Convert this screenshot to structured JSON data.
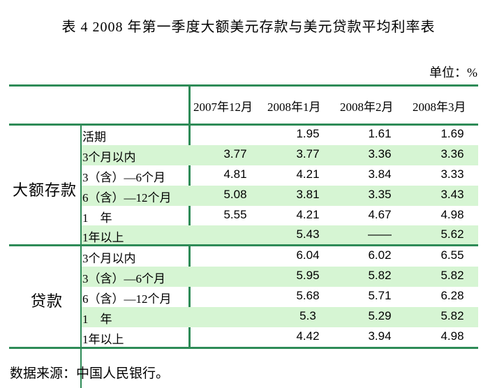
{
  "title": "表 4  2008 年第一季度大额美元存款与美元贷款平均利率表",
  "unit": "单位：%",
  "table": {
    "columns": [
      "2007年12月",
      "2008年1月",
      "2008年2月",
      "2008年3月"
    ],
    "groups": [
      {
        "name": "大额存款",
        "rows": [
          {
            "label": "活期",
            "values": [
              "",
              "1.95",
              "1.61",
              "1.69"
            ]
          },
          {
            "label": "3个月以内",
            "values": [
              "3.77",
              "3.77",
              "3.36",
              "3.36"
            ]
          },
          {
            "label": "3（含）—6个月",
            "values": [
              "4.81",
              "4.21",
              "3.84",
              "3.33"
            ]
          },
          {
            "label": "6（含）—12个月",
            "values": [
              "5.08",
              "3.81",
              "3.35",
              "3.43"
            ]
          },
          {
            "label": "1　年",
            "values": [
              "5.55",
              "4.21",
              "4.67",
              "4.98"
            ]
          },
          {
            "label": "1年以上",
            "values": [
              "",
              "5.43",
              "——",
              "5.62"
            ]
          }
        ]
      },
      {
        "name": "贷款",
        "rows": [
          {
            "label": "3个月以内",
            "values": [
              "",
              "6.04",
              "6.02",
              "6.55"
            ]
          },
          {
            "label": "3（含）—6个月",
            "values": [
              "",
              "5.95",
              "5.82",
              "5.82"
            ]
          },
          {
            "label": "6（含）—12个月",
            "values": [
              "",
              "5.68",
              "5.71",
              "6.28"
            ]
          },
          {
            "label": "1　年",
            "values": [
              "",
              "5.3",
              "5.29",
              "5.82"
            ]
          },
          {
            "label": "1年以上",
            "values": [
              "",
              "4.42",
              "3.94",
              "4.98"
            ]
          }
        ]
      }
    ]
  },
  "source": "数据来源：中国人民银行。"
}
